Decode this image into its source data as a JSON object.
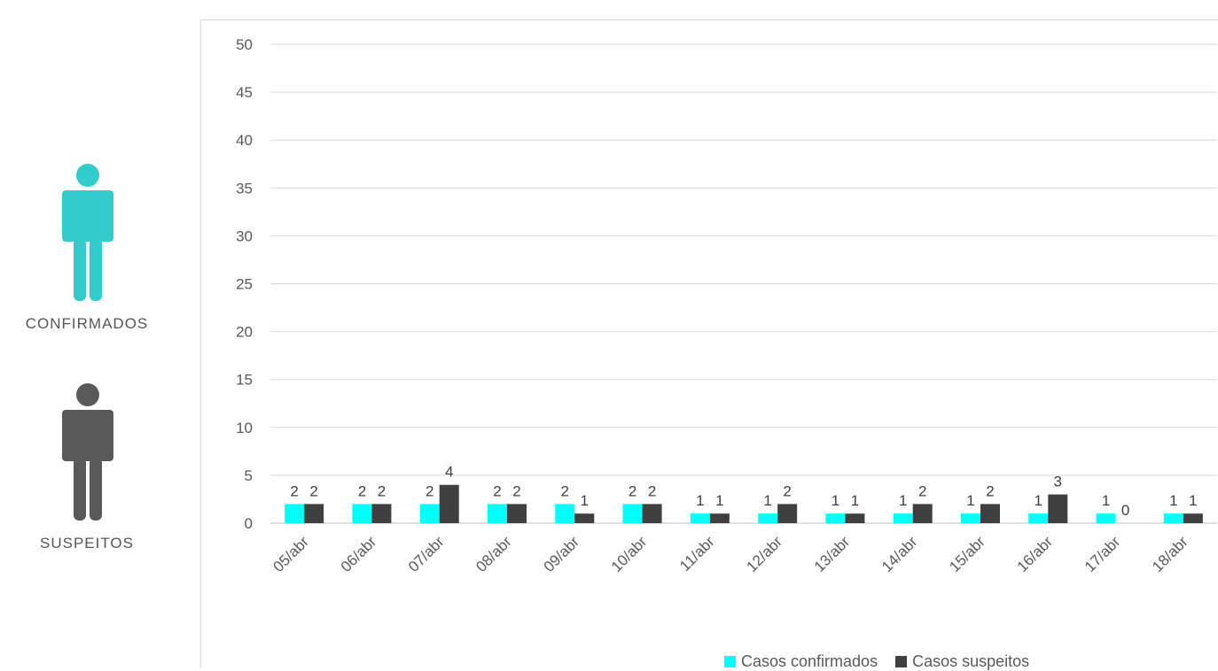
{
  "left_panel": {
    "confirmed_label": "CONFIRMADOS",
    "suspected_label": "SUSPEITOS",
    "confirmed_icon": "person-icon",
    "suspected_icon": "person-icon",
    "confirmed_color": "#33cccc",
    "suspected_color": "#595959"
  },
  "chart_data": {
    "type": "bar",
    "categories": [
      "05/abr",
      "06/abr",
      "07/abr",
      "08/abr",
      "09/abr",
      "10/abr",
      "11/abr",
      "12/abr",
      "13/abr",
      "14/abr",
      "15/abr",
      "16/abr",
      "17/abr",
      "18/abr"
    ],
    "series": [
      {
        "name": "Casos confirmados",
        "color": "#00ffff",
        "values": [
          2,
          2,
          2,
          2,
          2,
          2,
          1,
          1,
          1,
          1,
          1,
          1,
          1,
          1
        ]
      },
      {
        "name": "Casos suspeitos",
        "color": "#404040",
        "values": [
          2,
          2,
          4,
          2,
          1,
          2,
          1,
          2,
          1,
          2,
          2,
          3,
          0,
          1
        ]
      }
    ],
    "ylim": [
      0,
      50
    ],
    "yticks": [
      "0",
      "5",
      "10",
      "15",
      "20",
      "25",
      "30",
      "35",
      "40",
      "45",
      "50"
    ],
    "grid": true,
    "legend_position": "bottom",
    "data_labels": true
  }
}
